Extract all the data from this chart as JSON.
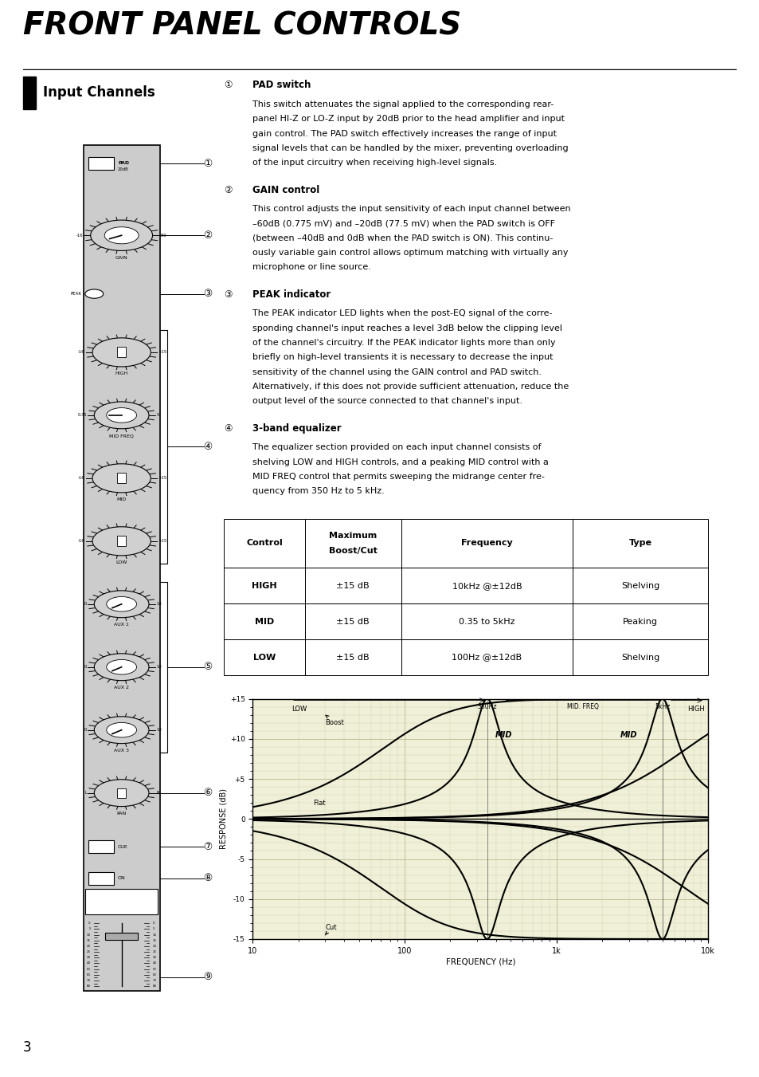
{
  "title": "FRONT PANEL CONTROLS",
  "section": "Input Channels",
  "bg_color": "#ffffff",
  "pad_switch_title": "PAD switch",
  "pad_switch_body": [
    "This switch attenuates the signal applied to the corresponding rear-",
    "panel HI-Z or LO-Z input by 20dB prior to the head amplifier and input",
    "gain control. The PAD switch effectively increases the range of input",
    "signal levels that can be handled by the mixer, preventing overloading",
    "of the input circuitry when receiving high-level signals."
  ],
  "gain_title": "GAIN control",
  "gain_body": [
    "This control adjusts the input sensitivity of each input channel between",
    "–60dB (0.775 mV) and –20dB (77.5 mV) when the PAD switch is OFF",
    "(between –40dB and 0dB when the PAD switch is ON). This continu-",
    "ously variable gain control allows optimum matching with virtually any",
    "microphone or line source."
  ],
  "peak_title": "PEAK indicator",
  "peak_body": [
    "The PEAK indicator LED lights when the post-EQ signal of the corre-",
    "sponding channel's input reaches a level 3dB below the clipping level",
    "of the channel's circuitry. If the PEAK indicator lights more than only",
    "briefly on high-level transients it is necessary to decrease the input",
    "sensitivity of the channel using the GAIN control and PAD switch.",
    "Alternatively, if this does not provide sufficient attenuation, reduce the",
    "output level of the source connected to that channel's input."
  ],
  "eq_title": "3-band equalizer",
  "eq_body": [
    "The equalizer section provided on each input channel consists of",
    "shelving LOW and HIGH controls, and a peaking MID control with a",
    "MID FREQ control that permits sweeping the midrange center fre-",
    "quency from 350 Hz to 5 kHz."
  ],
  "table_headers": [
    "Control",
    "Maximum\nBoost/Cut",
    "Frequency",
    "Type"
  ],
  "table_rows": [
    [
      "HIGH",
      "±15 dB",
      "10kHz @±12dB",
      "Shelving"
    ],
    [
      "MID",
      "±15 dB",
      "0.35 to 5kHz",
      "Peaking"
    ],
    [
      "LOW",
      "±15 dB",
      "100Hz @±12dB",
      "Shelving"
    ]
  ],
  "graph_ylabel": "RESPONSE (dB)",
  "graph_xlabel": "FREQUENCY (Hz)",
  "graph_yticks": [
    15,
    10,
    5,
    0,
    -5,
    -10,
    -15
  ],
  "graph_ytick_labels": [
    "+15",
    "+10",
    "+5",
    "0",
    "-5",
    "-10",
    "-15"
  ],
  "graph_xtick_labels": [
    "10",
    "100",
    "1k",
    "10k"
  ],
  "page_num": "3"
}
